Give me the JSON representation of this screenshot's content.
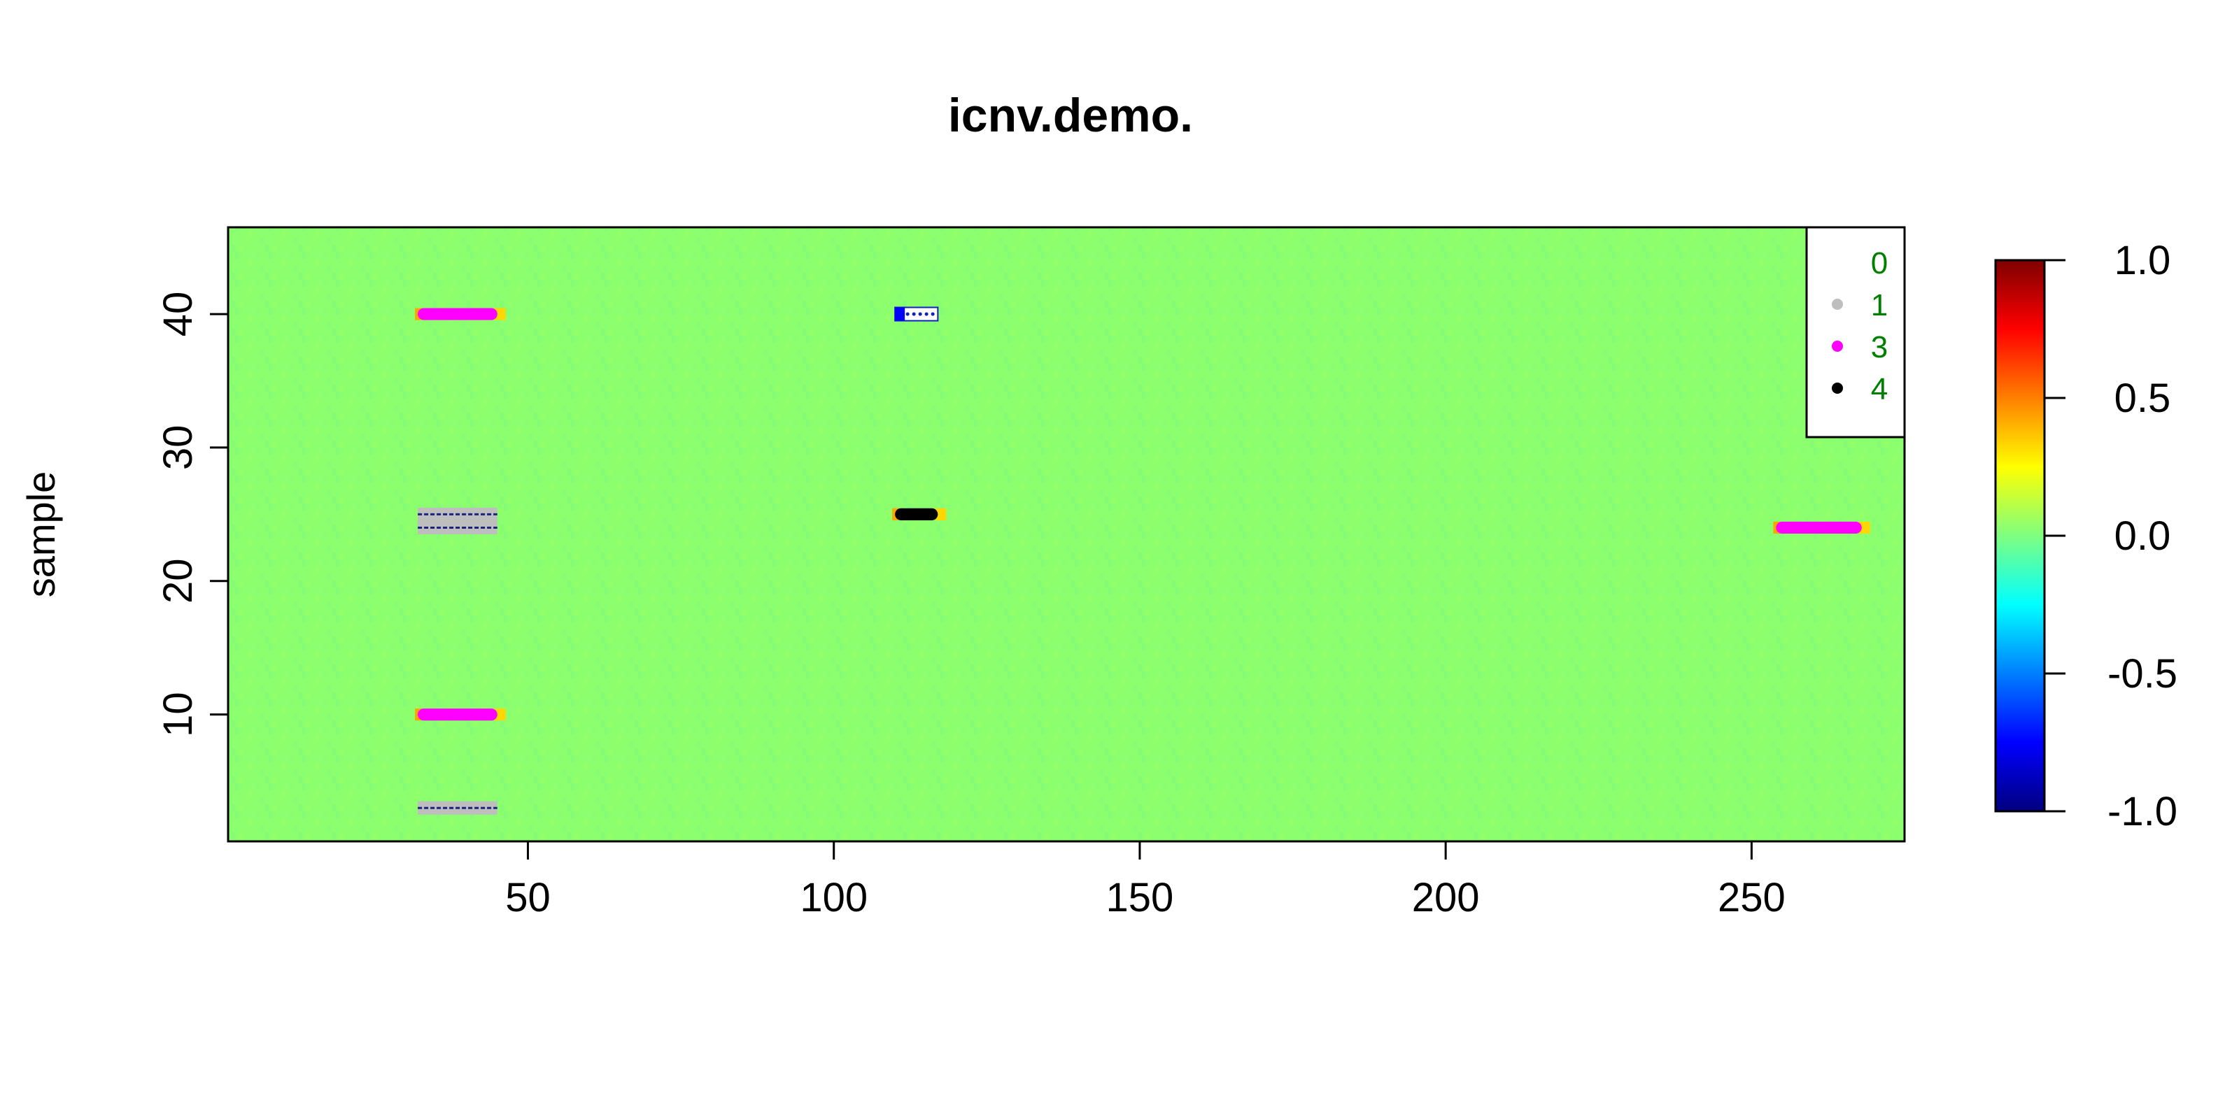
{
  "chart_data": {
    "type": "heatmap",
    "title": "icnv.demo.",
    "xlabel": "",
    "ylabel": "sample",
    "xlim": [
      1,
      275
    ],
    "ylim": [
      0.5,
      46.5
    ],
    "x_ticks": [
      "50",
      "100",
      "150",
      "200",
      "250"
    ],
    "y_ticks": [
      "10",
      "20",
      "30",
      "40"
    ],
    "background_value": 0.0,
    "background_color": "#8CFF6E",
    "legend": {
      "position": "top-right",
      "entries": [
        {
          "label": "0",
          "color": "#FFFFFF"
        },
        {
          "label": "1",
          "color": "#BEBEBE"
        },
        {
          "label": "3",
          "color": "#FF00FF"
        },
        {
          "label": "4",
          "color": "#000000"
        }
      ]
    },
    "colorbar": {
      "range": [
        -1.0,
        1.0
      ],
      "ticks": [
        "1.0",
        "0.5",
        "0.0",
        "-0.5",
        "-1.0"
      ],
      "stops": [
        "#00007F",
        "#0000FF",
        "#007FFF",
        "#00FFFF",
        "#7FFF7F",
        "#FFFF00",
        "#FF7F00",
        "#FF0000",
        "#7F0000"
      ]
    },
    "cnv_segments": [
      {
        "sample": 40,
        "x_start": 32,
        "x_end": 45,
        "state": "3"
      },
      {
        "sample": 40,
        "x_start": 110,
        "x_end": 117,
        "state": "0"
      },
      {
        "sample": 25,
        "x_start": 32,
        "x_end": 45,
        "state": "1"
      },
      {
        "sample": 24,
        "x_start": 32,
        "x_end": 45,
        "state": "1"
      },
      {
        "sample": 25,
        "x_start": 110,
        "x_end": 117,
        "state": "4"
      },
      {
        "sample": 24,
        "x_start": 254,
        "x_end": 268,
        "state": "3"
      },
      {
        "sample": 10,
        "x_start": 32,
        "x_end": 45,
        "state": "3"
      },
      {
        "sample": 3,
        "x_start": 32,
        "x_end": 45,
        "state": "1"
      }
    ]
  }
}
